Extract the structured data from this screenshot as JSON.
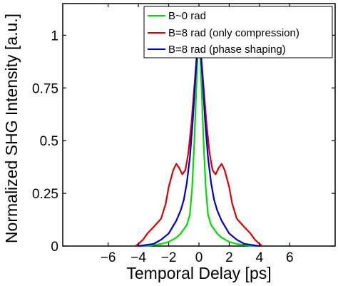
{
  "chart_data": {
    "type": "line",
    "title": "",
    "xlabel": "Temporal Delay [ps]",
    "ylabel": "Normalized SHG Intensity [a.u.]",
    "xlim": [
      -9,
      9
    ],
    "ylim": [
      0,
      1.15
    ],
    "xticks": [
      {
        "value": -6,
        "label": "−6"
      },
      {
        "value": -4,
        "label": "−4"
      },
      {
        "value": -2,
        "label": "−2"
      },
      {
        "value": 0,
        "label": "0"
      },
      {
        "value": 2,
        "label": "2"
      },
      {
        "value": 4,
        "label": "4"
      },
      {
        "value": 6,
        "label": "6"
      }
    ],
    "yticks": [
      {
        "value": 0,
        "label": "0"
      },
      {
        "value": 0.25,
        "label": "0.25"
      },
      {
        "value": 0.5,
        "label": "0.5"
      },
      {
        "value": 0.75,
        "label": "0.75"
      },
      {
        "value": 1,
        "label": "1"
      }
    ],
    "grid": false,
    "legend_position": "top-right",
    "series": [
      {
        "name": "B~0 rad",
        "color": "#00dd00",
        "x": [
          -4.0,
          -3.5,
          -3.0,
          -2.5,
          -2.0,
          -1.5,
          -1.2,
          -1.0,
          -0.8,
          -0.6,
          -0.45,
          -0.3,
          -0.2,
          -0.1,
          0.0,
          0.1,
          0.2,
          0.3,
          0.45,
          0.6,
          0.8,
          1.0,
          1.2,
          1.5,
          2.0,
          2.5,
          3.0,
          3.5,
          4.0
        ],
        "y": [
          0.0,
          0.0,
          0.005,
          0.01,
          0.02,
          0.04,
          0.06,
          0.08,
          0.1,
          0.15,
          0.28,
          0.5,
          0.7,
          0.88,
          1.0,
          0.88,
          0.7,
          0.5,
          0.28,
          0.15,
          0.1,
          0.08,
          0.06,
          0.04,
          0.02,
          0.01,
          0.005,
          0.0,
          0.0
        ]
      },
      {
        "name": "B=8 rad (only compression)",
        "color": "#dd0000",
        "x": [
          -4.2,
          -4.0,
          -3.7,
          -3.4,
          -3.0,
          -2.5,
          -2.2,
          -2.0,
          -1.7,
          -1.5,
          -1.3,
          -1.1,
          -0.9,
          -0.7,
          -0.5,
          -0.3,
          -0.15,
          0.0,
          0.15,
          0.3,
          0.5,
          0.7,
          0.9,
          1.1,
          1.3,
          1.5,
          1.7,
          2.0,
          2.2,
          2.5,
          3.0,
          3.4,
          3.7,
          4.0,
          4.2
        ],
        "y": [
          0.0,
          0.01,
          0.03,
          0.06,
          0.09,
          0.13,
          0.2,
          0.28,
          0.36,
          0.39,
          0.37,
          0.34,
          0.36,
          0.44,
          0.58,
          0.76,
          0.9,
          1.0,
          0.9,
          0.76,
          0.58,
          0.44,
          0.36,
          0.34,
          0.37,
          0.39,
          0.36,
          0.28,
          0.2,
          0.13,
          0.09,
          0.06,
          0.03,
          0.01,
          0.0
        ]
      },
      {
        "name": "B=8 rad (phase shaping)",
        "color": "#0000cc",
        "x": [
          -4.0,
          -3.5,
          -3.0,
          -2.5,
          -2.0,
          -1.5,
          -1.2,
          -1.0,
          -0.8,
          -0.6,
          -0.4,
          -0.25,
          -0.1,
          0.0,
          0.1,
          0.25,
          0.4,
          0.6,
          0.8,
          1.0,
          1.2,
          1.5,
          2.0,
          2.5,
          3.0,
          3.5,
          4.0
        ],
        "y": [
          0.0,
          0.005,
          0.01,
          0.03,
          0.06,
          0.12,
          0.17,
          0.22,
          0.3,
          0.42,
          0.6,
          0.78,
          0.94,
          1.0,
          0.94,
          0.78,
          0.6,
          0.42,
          0.3,
          0.22,
          0.17,
          0.12,
          0.06,
          0.03,
          0.01,
          0.005,
          0.0
        ]
      }
    ]
  }
}
